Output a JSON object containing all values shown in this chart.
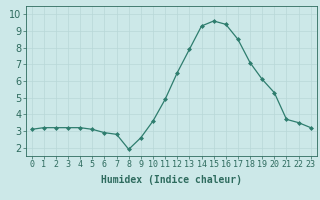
{
  "x": [
    0,
    1,
    2,
    3,
    4,
    5,
    6,
    7,
    8,
    9,
    10,
    11,
    12,
    13,
    14,
    15,
    16,
    17,
    18,
    19,
    20,
    21,
    22,
    23
  ],
  "y": [
    3.1,
    3.2,
    3.2,
    3.2,
    3.2,
    3.1,
    2.9,
    2.8,
    1.9,
    2.6,
    3.6,
    4.9,
    6.5,
    7.9,
    9.3,
    9.6,
    9.4,
    8.5,
    7.1,
    6.1,
    5.3,
    3.7,
    3.5,
    3.2
  ],
  "line_color": "#2e7d6e",
  "marker_color": "#2e7d6e",
  "bg_color": "#cce8e8",
  "grid_color": "#b8d8d8",
  "xlabel": "Humidex (Indice chaleur)",
  "xlabel_fontsize": 7,
  "tick_fontsize": 6,
  "ylim": [
    1.5,
    10.5
  ],
  "yticks": [
    2,
    3,
    4,
    5,
    6,
    7,
    8,
    9,
    10
  ],
  "xtick_labels": [
    "0",
    "1",
    "2",
    "3",
    "4",
    "5",
    "6",
    "7",
    "8",
    "9",
    "10",
    "11",
    "12",
    "13",
    "14",
    "15",
    "16",
    "17",
    "18",
    "19",
    "20",
    "21",
    "22",
    "23"
  ],
  "text_color": "#2e6b5e"
}
